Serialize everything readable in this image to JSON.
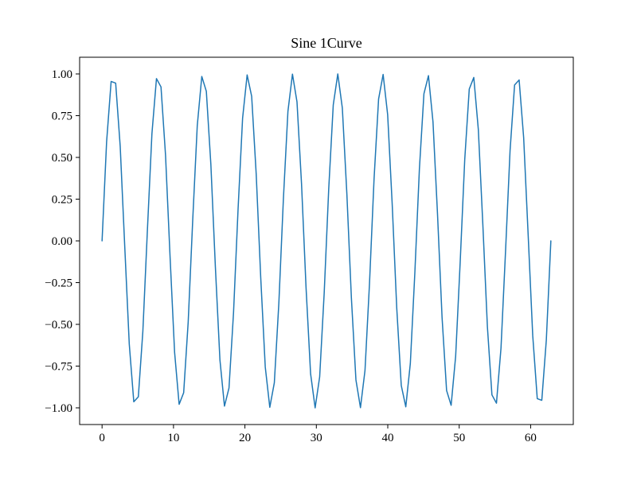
{
  "figure": {
    "background_color": "#ffffff",
    "text_color": "#000000",
    "spine_color": "#000000"
  },
  "chart_data": {
    "type": "line",
    "title": "Sine 1Curve",
    "xlabel": "",
    "ylabel": "",
    "grid": false,
    "legend": null,
    "xlim": [
      -3.1416,
      65.9734
    ],
    "ylim": [
      -1.1,
      1.1
    ],
    "x_data_range": [
      0,
      62.8319
    ],
    "xticks": {
      "values": [
        0,
        10,
        20,
        30,
        40,
        50,
        60
      ],
      "labels": [
        "0",
        "10",
        "20",
        "30",
        "40",
        "50",
        "60"
      ]
    },
    "yticks": {
      "values": [
        -1.0,
        -0.75,
        -0.5,
        -0.25,
        0.0,
        0.25,
        0.5,
        0.75,
        1.0
      ],
      "labels": [
        "−1.00",
        "−0.75",
        "−0.50",
        "−0.25",
        "0.00",
        "0.25",
        "0.50",
        "0.75",
        "1.00"
      ]
    },
    "series": [
      {
        "name": "sine",
        "color": "#1f77b4",
        "line_width": 1.5,
        "amplitude": 1.0,
        "periods": 10,
        "generator": {
          "expression": "sin(x)",
          "x_start": 0,
          "x_end": 62.83185307,
          "n_points": 100
        }
      }
    ]
  }
}
